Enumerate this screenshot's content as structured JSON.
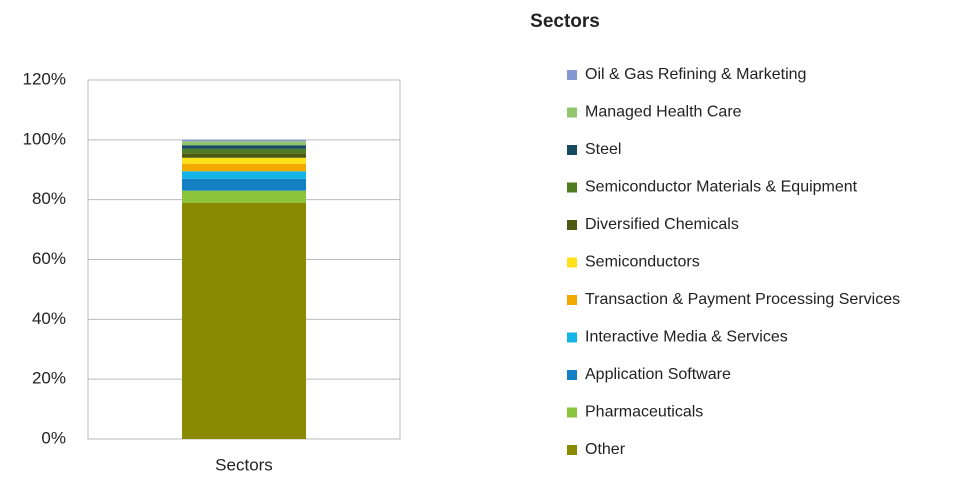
{
  "chart_data": {
    "type": "stacked_bar",
    "title": "Sectors",
    "categories": [
      "Sectors"
    ],
    "series": [
      {
        "name": "Other",
        "color": "#8a8a00",
        "values": [
          79
        ]
      },
      {
        "name": "Pharmaceuticals",
        "color": "#8cc43c",
        "values": [
          4
        ]
      },
      {
        "name": "Application Software",
        "color": "#1480c4",
        "values": [
          4
        ]
      },
      {
        "name": "Interactive Media & Services",
        "color": "#14b4e6",
        "values": [
          2.5
        ]
      },
      {
        "name": "Transaction & Payment Processing Services",
        "color": "#f2a900",
        "values": [
          2.5
        ]
      },
      {
        "name": "Semiconductors",
        "color": "#ffe21a",
        "values": [
          2
        ]
      },
      {
        "name": "Diversified Chemicals",
        "color": "#4d5a12",
        "values": [
          1.5
        ]
      },
      {
        "name": "Semiconductor Materials & Equipment",
        "color": "#4f7b22",
        "values": [
          1.5
        ]
      },
      {
        "name": "Steel",
        "color": "#17495f",
        "values": [
          1.2
        ]
      },
      {
        "name": "Managed Health Care",
        "color": "#92c56e",
        "values": [
          1.3
        ]
      },
      {
        "name": "Oil & Gas Refining & Marketing",
        "color": "#8497d0",
        "values": [
          0.5
        ]
      }
    ],
    "ylim": [
      0,
      120
    ],
    "yticks": [
      {
        "value": 0,
        "label": "0%"
      },
      {
        "value": 20,
        "label": "20%"
      },
      {
        "value": 40,
        "label": "40%"
      },
      {
        "value": 60,
        "label": "60%"
      },
      {
        "value": 80,
        "label": "80%"
      },
      {
        "value": 100,
        "label": "100%"
      },
      {
        "value": 120,
        "label": "120%"
      }
    ],
    "grid": true
  }
}
